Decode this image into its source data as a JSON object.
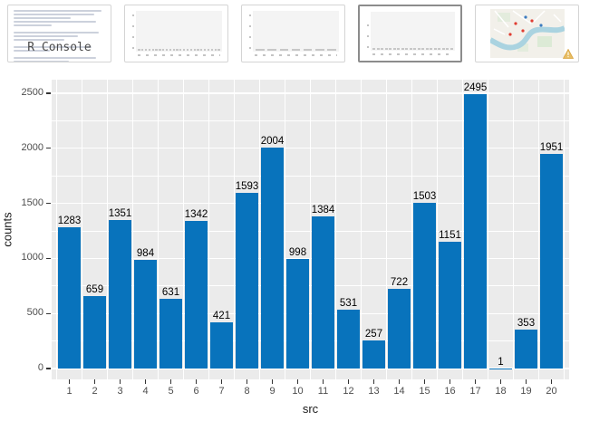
{
  "thumbnails": {
    "console_label": "R Console",
    "light_bar_color": "#a5cde9",
    "dark_bar_color": "#0873bc",
    "items": [
      {
        "name": "r-console",
        "type": "console"
      },
      {
        "name": "plot-hourly-bars",
        "type": "mini-bar-light",
        "values": [
          0.78,
          0.84,
          0.8,
          0.86,
          0.82,
          0.76,
          0.7,
          0.6,
          0.48,
          0.36,
          0.28,
          0.26,
          0.34,
          0.56,
          0.84,
          0.86,
          0.9,
          0.93,
          0.88,
          0.86,
          0.84,
          0.88,
          0.86,
          0.84
        ]
      },
      {
        "name": "plot-weekday-bars",
        "type": "mini-bar-light",
        "values": [
          0.9,
          0.9,
          0.74,
          0.81,
          0.89,
          0.87,
          0.89
        ]
      },
      {
        "name": "plot-src-bars",
        "type": "mini-bar-dark",
        "selected": true,
        "values": "main"
      },
      {
        "name": "map-plot",
        "type": "map",
        "has_warning": true
      }
    ]
  },
  "chart_data": {
    "type": "bar",
    "x": [
      1,
      2,
      3,
      4,
      5,
      6,
      7,
      8,
      9,
      10,
      11,
      12,
      13,
      14,
      15,
      16,
      17,
      18,
      19,
      20
    ],
    "values": [
      1283,
      659,
      1351,
      984,
      631,
      1342,
      421,
      1593,
      2004,
      998,
      1384,
      531,
      257,
      722,
      1503,
      1151,
      2495,
      1,
      353,
      1951
    ],
    "value_labels": [
      "1283",
      "659",
      "1351",
      "984",
      "631",
      "1342",
      "421",
      "1593",
      "2004",
      "998",
      "1384",
      "531",
      "257",
      "722",
      "1503",
      "1151",
      "2495",
      "1",
      "353",
      "1951"
    ],
    "xlabel": "src",
    "ylabel": "counts",
    "yticks": [
      0,
      500,
      1000,
      1500,
      2000,
      2500
    ],
    "yticks_minor": [
      250,
      750,
      1250,
      1750,
      2250
    ],
    "ylim": [
      0,
      2500
    ],
    "bar_color": "#0873bc",
    "panel_bg": "#ebebeb",
    "grid_color": "#ffffff",
    "grid": true,
    "legend": "none"
  }
}
